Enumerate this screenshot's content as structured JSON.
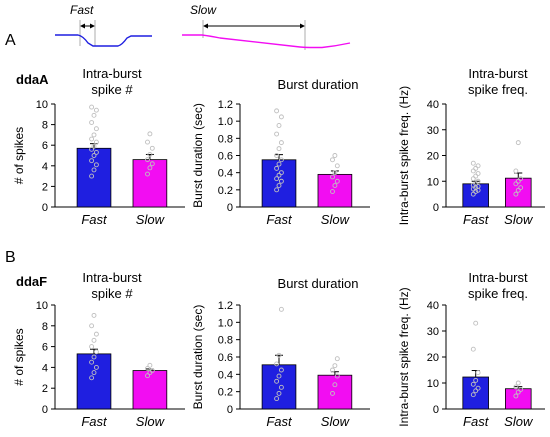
{
  "colors": {
    "fast": "#1f1fe0",
    "slow": "#f20df2",
    "dots": "#bfbfbf"
  },
  "stimulus": {
    "fast_label": "Fast",
    "slow_label": "Slow"
  },
  "rows": [
    {
      "panel": "A",
      "neuron": "ddaA"
    },
    {
      "panel": "B",
      "neuron": "ddaF"
    }
  ],
  "chart_data": [
    {
      "type": "bar",
      "row": "A",
      "title": [
        "Intra-burst",
        "spike #"
      ],
      "ylabel": "# of spikes",
      "ylim": [
        0,
        10
      ],
      "yticks": [
        "0",
        "2",
        "4",
        "6",
        "8",
        "10"
      ],
      "categories": [
        "Fast",
        "Slow"
      ],
      "values": [
        5.7,
        4.6
      ],
      "errors": [
        0.45,
        0.5
      ],
      "points": [
        [
          3.0,
          3.6,
          4.1,
          4.5,
          5.0,
          5.3,
          5.6,
          5.9,
          6.3,
          6.6,
          7.0,
          7.6,
          8.2,
          8.9,
          9.4,
          9.7
        ],
        [
          3.2,
          3.8,
          4.2,
          4.6,
          5.1,
          5.7,
          6.3,
          7.1
        ]
      ]
    },
    {
      "type": "bar",
      "row": "A",
      "title": [
        "Burst duration"
      ],
      "ylabel": "Burst duration (sec)",
      "ylim": [
        0,
        1.2
      ],
      "yticks": [
        "0",
        "0.2",
        "0.4",
        "0.6",
        "0.8",
        "1.0",
        "1.2"
      ],
      "categories": [
        "Fast",
        "Slow"
      ],
      "values": [
        0.55,
        0.38
      ],
      "errors": [
        0.06,
        0.04
      ],
      "points": [
        [
          0.2,
          0.25,
          0.3,
          0.33,
          0.37,
          0.4,
          0.45,
          0.5,
          0.55,
          0.6,
          0.68,
          0.75,
          0.85,
          0.95,
          1.05,
          1.12
        ],
        [
          0.18,
          0.25,
          0.3,
          0.35,
          0.4,
          0.48,
          0.55,
          0.6
        ]
      ]
    },
    {
      "type": "bar",
      "row": "A",
      "title": [
        "Intra-burst",
        "spike freq."
      ],
      "ylabel": "Intra-burst spike freq. (Hz)",
      "ylim": [
        0,
        40
      ],
      "yticks": [
        "0",
        "10",
        "20",
        "30",
        "40"
      ],
      "categories": [
        "Fast",
        "Slow"
      ],
      "values": [
        9,
        11.2
      ],
      "errors": [
        1.0,
        2.0
      ],
      "points": [
        [
          5,
          6,
          6.5,
          7,
          7.5,
          8,
          8.5,
          9,
          10,
          11,
          12,
          13,
          14,
          15,
          16,
          17
        ],
        [
          5,
          6.5,
          7.5,
          9,
          10,
          11,
          14,
          25
        ]
      ]
    },
    {
      "type": "bar",
      "row": "B",
      "title": [
        "Intra-burst",
        "spike #"
      ],
      "ylabel": "# of spikes",
      "ylim": [
        0,
        10
      ],
      "yticks": [
        "0",
        "2",
        "4",
        "6",
        "8",
        "10"
      ],
      "categories": [
        "Fast",
        "Slow"
      ],
      "values": [
        5.3,
        3.7
      ],
      "errors": [
        0.45,
        0.15
      ],
      "points": [
        [
          3.0,
          3.5,
          4.0,
          4.5,
          5.0,
          5.5,
          6.0,
          6.6,
          7.2,
          8.0,
          9.0
        ],
        [
          3.2,
          3.5,
          3.7,
          3.9,
          4.2
        ]
      ]
    },
    {
      "type": "bar",
      "row": "B",
      "title": [
        "Burst duration"
      ],
      "ylabel": "Burst duration (sec)",
      "ylim": [
        0,
        1.2
      ],
      "yticks": [
        "0",
        "0.2",
        "0.4",
        "0.6",
        "0.8",
        "1.0",
        "1.2"
      ],
      "categories": [
        "Fast",
        "Slow"
      ],
      "values": [
        0.51,
        0.39
      ],
      "errors": [
        0.11,
        0.04
      ],
      "points": [
        [
          0.12,
          0.18,
          0.25,
          0.32,
          0.38,
          0.45,
          0.52,
          0.62,
          1.15
        ],
        [
          0.18,
          0.28,
          0.38,
          0.45,
          0.5,
          0.58
        ]
      ]
    },
    {
      "type": "bar",
      "row": "B",
      "title": [
        "Intra-burst",
        "spike freq."
      ],
      "ylabel": "Intra-burst spike freq. (Hz)",
      "ylim": [
        0,
        40
      ],
      "yticks": [
        "0",
        "10",
        "20",
        "30",
        "40"
      ],
      "categories": [
        "Fast",
        "Slow"
      ],
      "values": [
        12.3,
        7.8
      ],
      "errors": [
        2.5,
        0.8
      ],
      "points": [
        [
          5.5,
          7,
          8,
          9.5,
          11,
          14,
          23,
          33
        ],
        [
          5,
          6.5,
          7.5,
          8.5,
          10
        ]
      ]
    }
  ]
}
